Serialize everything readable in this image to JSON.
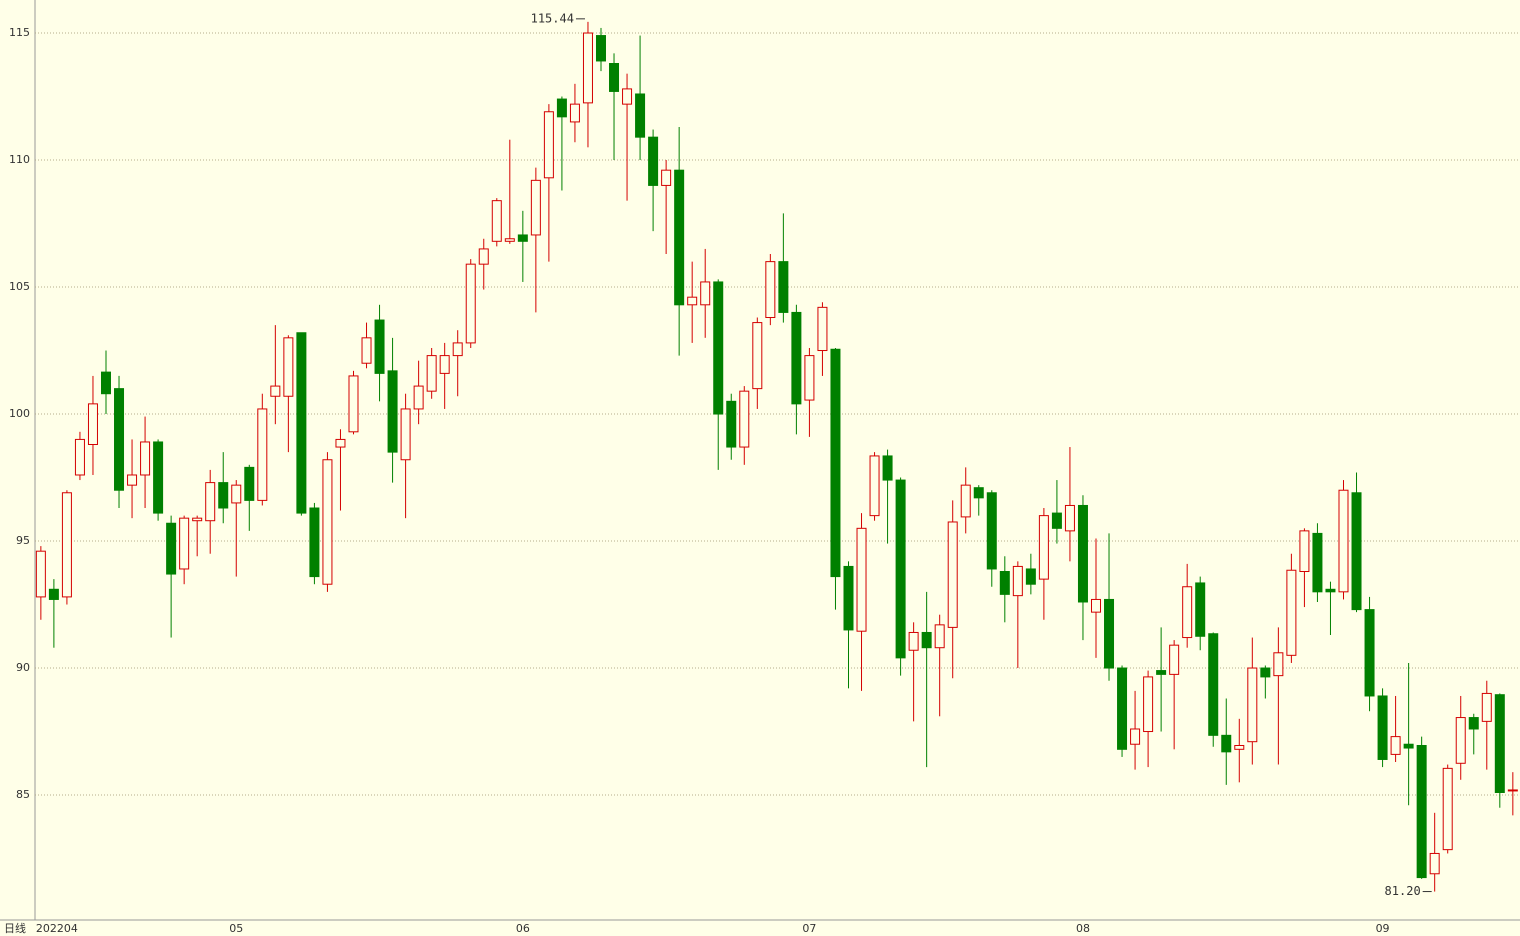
{
  "chart_data": {
    "type": "candlestick",
    "period_label": "日线",
    "categories": [
      "202204",
      null,
      null,
      null,
      null,
      null,
      null,
      null,
      null,
      null,
      null,
      null,
      null,
      null,
      null,
      "05",
      null,
      null,
      null,
      null,
      null,
      null,
      null,
      null,
      null,
      null,
      null,
      null,
      null,
      null,
      null,
      null,
      null,
      null,
      null,
      null,
      null,
      "06",
      null,
      null,
      null,
      null,
      null,
      null,
      null,
      null,
      null,
      null,
      null,
      null,
      null,
      null,
      null,
      null,
      null,
      null,
      null,
      null,
      null,
      "07",
      null,
      null,
      null,
      null,
      null,
      null,
      null,
      null,
      null,
      null,
      null,
      null,
      null,
      null,
      null,
      null,
      null,
      null,
      null,
      null,
      "08",
      null,
      null,
      null,
      null,
      null,
      null,
      null,
      null,
      null,
      null,
      null,
      null,
      null,
      null,
      null,
      null,
      null,
      null,
      null,
      null,
      null,
      null,
      "09",
      null,
      null,
      null,
      null,
      null,
      null,
      null,
      null,
      null,
      null
    ],
    "open": [
      92.8,
      93.1,
      92.8,
      97.6,
      98.8,
      101.65,
      101.0,
      97.2,
      97.6,
      98.9,
      95.7,
      93.9,
      95.8,
      95.8,
      97.3,
      96.5,
      97.9,
      96.6,
      100.7,
      100.7,
      103.2,
      96.3,
      93.3,
      98.7,
      99.3,
      102.0,
      103.7,
      101.7,
      98.2,
      100.2,
      100.9,
      101.6,
      102.3,
      102.8,
      105.9,
      106.8,
      106.8,
      107.05,
      107.05,
      109.3,
      112.4,
      111.5,
      112.25,
      114.9,
      113.8,
      112.2,
      112.6,
      110.9,
      109.0,
      109.6,
      104.3,
      104.3,
      105.2,
      100.5,
      98.7,
      101.0,
      103.8,
      106.0,
      104.0,
      100.55,
      102.5,
      102.55,
      94.0,
      91.45,
      96.0,
      98.35,
      97.4,
      90.7,
      91.4,
      90.8,
      91.6,
      95.95,
      97.1,
      96.9,
      93.8,
      92.85,
      93.9,
      93.5,
      96.1,
      95.4,
      96.4,
      92.2,
      92.7,
      90.0,
      87.0,
      87.5,
      89.9,
      89.75,
      91.2,
      93.35,
      91.35,
      87.35,
      86.8,
      87.1,
      90.0,
      89.7,
      90.5,
      93.8,
      95.3,
      93.1,
      93.0,
      96.9,
      92.3,
      88.9,
      86.6,
      87.0,
      86.95,
      81.9,
      82.85,
      86.25,
      88.05,
      87.9,
      88.95,
      85.2
    ],
    "high": [
      94.8,
      93.5,
      97.0,
      99.3,
      101.5,
      102.5,
      101.5,
      99.0,
      99.9,
      99.0,
      96.0,
      96.0,
      96.0,
      97.8,
      98.5,
      97.4,
      98.0,
      100.8,
      103.5,
      103.1,
      103.2,
      96.5,
      98.5,
      99.4,
      101.7,
      103.6,
      104.3,
      103.0,
      100.8,
      102.1,
      102.6,
      102.8,
      103.3,
      106.1,
      106.9,
      108.5,
      110.8,
      108.0,
      109.7,
      112.2,
      112.5,
      113.0,
      115.44,
      115.2,
      114.2,
      113.4,
      114.9,
      111.2,
      110.0,
      111.3,
      106.0,
      106.5,
      105.3,
      100.8,
      101.1,
      103.8,
      106.3,
      107.9,
      104.3,
      102.6,
      104.4,
      102.6,
      94.2,
      96.1,
      98.5,
      98.6,
      97.5,
      91.8,
      93.0,
      92.1,
      96.6,
      97.9,
      97.2,
      97.0,
      94.4,
      94.2,
      94.5,
      96.3,
      97.4,
      98.7,
      96.8,
      95.1,
      95.3,
      90.1,
      89.1,
      89.9,
      91.6,
      91.1,
      94.1,
      93.6,
      91.4,
      88.8,
      88.0,
      91.2,
      90.1,
      91.6,
      94.5,
      95.5,
      95.7,
      93.4,
      97.4,
      97.7,
      92.8,
      89.2,
      88.9,
      90.2,
      87.3,
      84.3,
      86.2,
      88.9,
      88.2,
      89.5,
      89.0,
      85.9
    ],
    "low": [
      91.9,
      90.8,
      92.5,
      97.4,
      97.6,
      100.0,
      96.3,
      95.9,
      96.3,
      95.8,
      91.2,
      93.3,
      94.4,
      94.5,
      95.7,
      93.6,
      95.4,
      96.4,
      99.6,
      98.5,
      96.0,
      93.3,
      93.0,
      96.2,
      99.2,
      101.8,
      100.5,
      97.3,
      95.9,
      99.6,
      100.6,
      100.2,
      100.7,
      102.6,
      104.9,
      106.6,
      106.7,
      105.2,
      104.0,
      106.0,
      108.8,
      110.7,
      110.5,
      113.5,
      110.0,
      108.4,
      110.0,
      107.2,
      106.3,
      102.3,
      102.8,
      103.0,
      97.8,
      98.2,
      98.0,
      100.2,
      103.5,
      103.6,
      99.2,
      99.1,
      101.5,
      92.3,
      89.2,
      89.1,
      95.8,
      94.9,
      89.7,
      87.9,
      86.1,
      88.1,
      89.6,
      95.3,
      96.0,
      93.2,
      91.8,
      90.0,
      92.9,
      91.9,
      94.9,
      94.2,
      91.1,
      90.4,
      89.5,
      86.5,
      86.0,
      86.1,
      87.5,
      86.8,
      90.8,
      90.7,
      86.9,
      85.4,
      85.5,
      86.2,
      88.8,
      86.2,
      90.2,
      92.4,
      92.6,
      91.3,
      92.7,
      92.2,
      88.3,
      86.1,
      86.3,
      84.6,
      81.7,
      81.2,
      82.7,
      85.6,
      86.6,
      86.0,
      84.5,
      84.2
    ],
    "close": [
      94.6,
      92.7,
      96.9,
      99.0,
      100.4,
      100.8,
      97.0,
      97.6,
      98.9,
      96.1,
      93.7,
      95.9,
      95.9,
      97.3,
      96.3,
      97.2,
      96.6,
      100.2,
      101.1,
      103.0,
      96.1,
      93.6,
      98.2,
      99.0,
      101.5,
      103.0,
      101.6,
      98.5,
      100.2,
      101.1,
      102.3,
      102.3,
      102.8,
      105.9,
      106.5,
      108.4,
      106.9,
      106.8,
      109.2,
      111.9,
      111.7,
      112.2,
      115.0,
      113.9,
      112.7,
      112.8,
      110.9,
      109.0,
      109.6,
      104.3,
      104.6,
      105.2,
      100.0,
      98.7,
      100.9,
      103.6,
      106.0,
      104.0,
      100.4,
      102.3,
      104.2,
      93.6,
      91.5,
      95.5,
      98.35,
      97.4,
      90.4,
      91.4,
      90.8,
      91.7,
      95.75,
      97.2,
      96.7,
      93.9,
      92.9,
      94.0,
      93.3,
      96.0,
      95.5,
      96.4,
      92.6,
      92.7,
      90.0,
      86.8,
      87.6,
      89.65,
      89.75,
      90.9,
      93.2,
      91.25,
      87.35,
      86.7,
      86.95,
      90.0,
      89.65,
      90.6,
      93.85,
      95.4,
      93.0,
      93.0,
      97.0,
      92.3,
      88.9,
      86.4,
      87.3,
      86.85,
      81.75,
      82.7,
      86.05,
      88.05,
      87.6,
      89.0,
      85.1,
      85.2
    ],
    "max_label": "115.44",
    "min_label": "81.20",
    "ylim": [
      80.08,
      116.3
    ],
    "yticks": [
      85,
      90,
      95,
      100,
      105,
      110,
      115
    ],
    "grid": true,
    "up_color": "#d40000",
    "down_color": "#008000"
  }
}
